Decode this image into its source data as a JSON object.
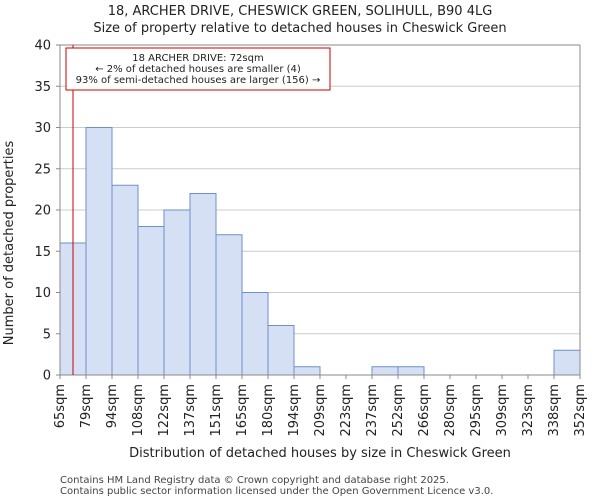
{
  "chart_data": {
    "type": "bar",
    "title": "18, ARCHER DRIVE, CHESWICK GREEN, SOLIHULL, B90 4LG",
    "subtitle": "Size of property relative to detached houses in Cheswick Green",
    "xlabel": "Distribution of detached houses by size in Cheswick Green",
    "ylabel": "Number of detached properties",
    "ylim": [
      0,
      40
    ],
    "yticks": [
      0,
      5,
      10,
      15,
      20,
      25,
      30,
      35,
      40
    ],
    "bin_edges": [
      "65sqm",
      "79sqm",
      "94sqm",
      "108sqm",
      "122sqm",
      "137sqm",
      "151sqm",
      "165sqm",
      "180sqm",
      "194sqm",
      "209sqm",
      "223sqm",
      "237sqm",
      "252sqm",
      "266sqm",
      "280sqm",
      "295sqm",
      "309sqm",
      "323sqm",
      "338sqm",
      "352sqm"
    ],
    "values": [
      16,
      30,
      23,
      18,
      20,
      22,
      17,
      10,
      6,
      1,
      0,
      0,
      1,
      1,
      0,
      0,
      0,
      0,
      0,
      3
    ],
    "marker": {
      "value_bin_position": 0.5,
      "label_lines": [
        "18 ARCHER DRIVE: 72sqm",
        "← 2% of detached houses are smaller (4)",
        "93% of semi-detached houses are larger (156) →"
      ]
    },
    "colors": {
      "bar_fill": "#d6e0f5",
      "bar_stroke": "#6e8fc9",
      "marker_line": "#cc0000",
      "annotation_border": "#cc0000",
      "grid": "#cccccc"
    },
    "footer": [
      "Contains HM Land Registry data © Crown copyright and database right 2025.",
      "Contains public sector information licensed under the Open Government Licence v3.0."
    ]
  }
}
